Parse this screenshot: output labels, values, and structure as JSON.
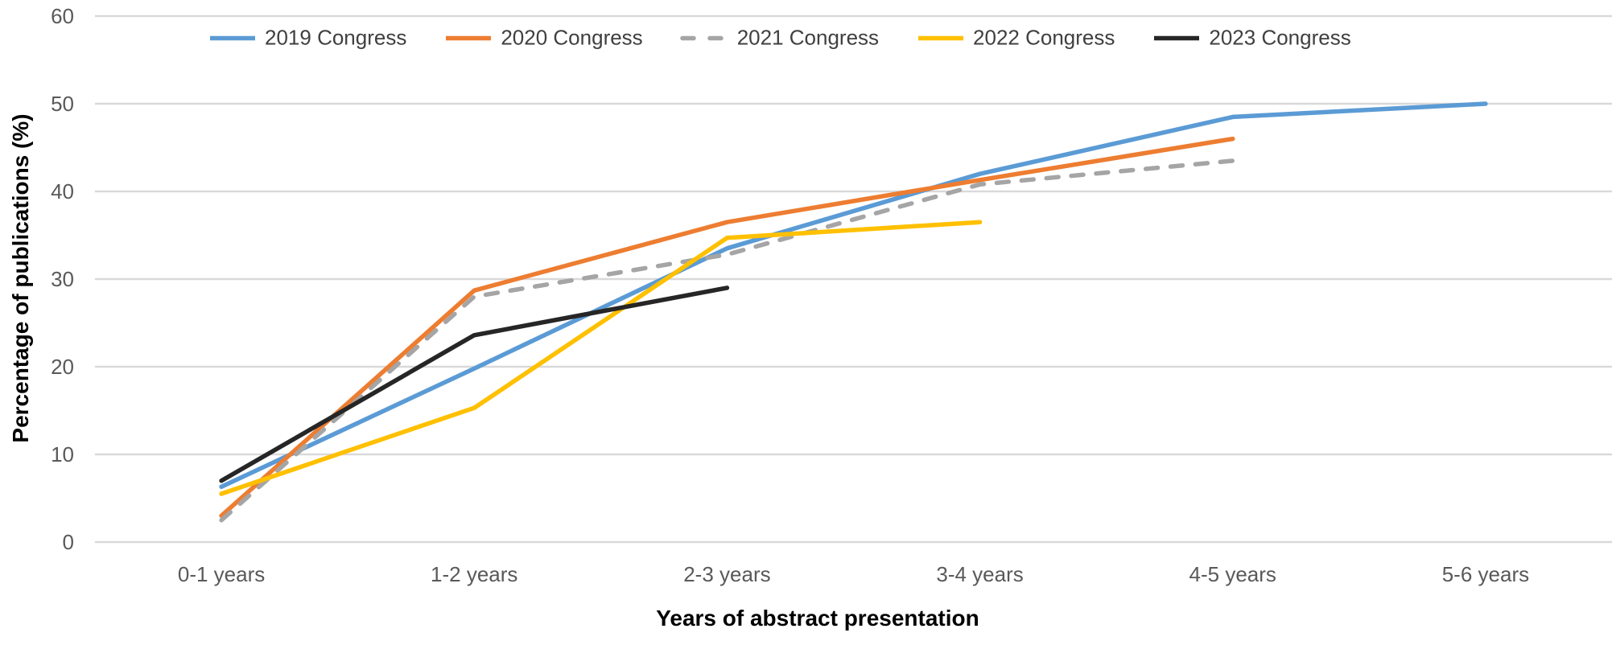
{
  "chart_data": {
    "type": "line",
    "title": "",
    "xlabel": "Years of abstract presentation",
    "ylabel": "Percentage of publications (%)",
    "categories": [
      "0-1 years",
      "1-2 years",
      "2-3 years",
      "3-4 years",
      "4-5 years",
      "5-6 years"
    ],
    "series": [
      {
        "name": "2019 Congress",
        "color": "#5B9BD5",
        "style": "solid",
        "values": [
          6.3,
          19.8,
          33.5,
          42.0,
          48.5,
          50.0
        ]
      },
      {
        "name": "2020 Congress",
        "color": "#ED7D31",
        "style": "solid",
        "values": [
          3.0,
          28.7,
          36.5,
          41.3,
          46.0,
          null
        ]
      },
      {
        "name": "2021 Congress",
        "color": "#A5A5A5",
        "style": "dashed",
        "values": [
          2.5,
          28.0,
          32.8,
          40.8,
          43.5,
          null
        ]
      },
      {
        "name": "2022 Congress",
        "color": "#FFC000",
        "style": "solid",
        "values": [
          5.5,
          15.3,
          34.7,
          36.5,
          null,
          null
        ]
      },
      {
        "name": "2023 Congress",
        "color": "#262626",
        "style": "solid",
        "values": [
          7.0,
          23.6,
          29.0,
          null,
          null,
          null
        ]
      }
    ],
    "ylim": [
      0,
      60
    ],
    "yticks": [
      0,
      10,
      20,
      30,
      40,
      50,
      60
    ],
    "grid": true,
    "gridline_color": "#D9D9D9",
    "tick_label_color": "#595959",
    "legend_position": "top"
  }
}
